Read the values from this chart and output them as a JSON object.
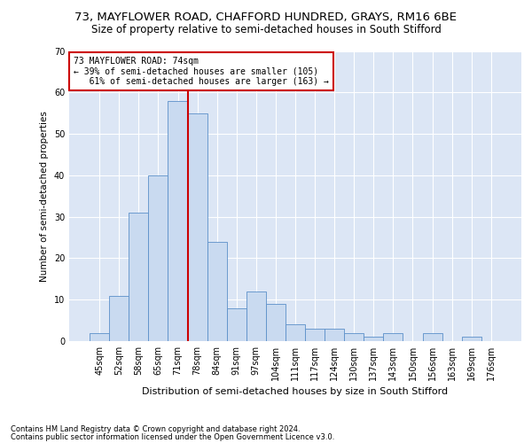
{
  "title1": "73, MAYFLOWER ROAD, CHAFFORD HUNDRED, GRAYS, RM16 6BE",
  "title2": "Size of property relative to semi-detached houses in South Stifford",
  "xlabel": "Distribution of semi-detached houses by size in South Stifford",
  "ylabel": "Number of semi-detached properties",
  "footnote1": "Contains HM Land Registry data © Crown copyright and database right 2024.",
  "footnote2": "Contains public sector information licensed under the Open Government Licence v3.0.",
  "bar_labels": [
    "45sqm",
    "52sqm",
    "58sqm",
    "65sqm",
    "71sqm",
    "78sqm",
    "84sqm",
    "91sqm",
    "97sqm",
    "104sqm",
    "111sqm",
    "117sqm",
    "124sqm",
    "130sqm",
    "137sqm",
    "143sqm",
    "150sqm",
    "156sqm",
    "163sqm",
    "169sqm",
    "176sqm"
  ],
  "bar_values": [
    2,
    11,
    31,
    40,
    58,
    55,
    24,
    8,
    12,
    9,
    4,
    3,
    3,
    2,
    1,
    2,
    0,
    2,
    0,
    1,
    0
  ],
  "bar_color": "#c9daf0",
  "bar_edge_color": "#5b8fc9",
  "vline_bin_index": 4,
  "vline_color": "#cc0000",
  "annotation_line1": "73 MAYFLOWER ROAD: 74sqm",
  "annotation_line2": "← 39% of semi-detached houses are smaller (105)",
  "annotation_line3": "   61% of semi-detached houses are larger (163) →",
  "annotation_box_facecolor": "#ffffff",
  "annotation_box_edgecolor": "#cc0000",
  "ylim": [
    0,
    70
  ],
  "yticks": [
    0,
    10,
    20,
    30,
    40,
    50,
    60,
    70
  ],
  "bg_color": "#dce6f5",
  "fig_bg_color": "#ffffff",
  "title1_fontsize": 9.5,
  "title2_fontsize": 8.5,
  "ylabel_fontsize": 7.5,
  "xlabel_fontsize": 8,
  "footnote_fontsize": 6,
  "tick_fontsize": 7,
  "annot_fontsize": 7
}
